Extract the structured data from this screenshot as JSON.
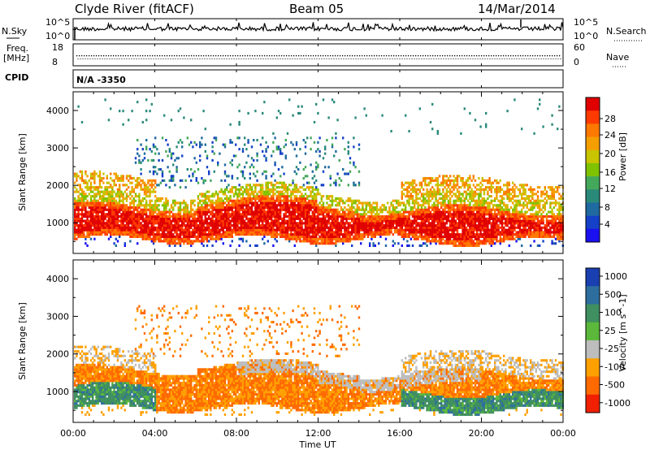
{
  "header": {
    "station": "Clyde River (fitACF)",
    "beam": "Beam 05",
    "date": "14/Mar/2014"
  },
  "top_panels": {
    "nsky_label": "N.Sky",
    "nsky_top_tick": "10^5",
    "nsky_bottom_tick": "10^0",
    "nsearch_label": "N.Search",
    "nsearch_top_tick": "10^5",
    "nsearch_bottom_tick": "10^0",
    "freq_label_1": "Freq.",
    "freq_label_2": "[MHz]",
    "freq_top_tick": "18",
    "freq_bottom_tick": "8",
    "nave_label": "Nave",
    "nave_top_tick": "60",
    "nave_bottom_tick": "0",
    "cpid_label": "CPID",
    "cpid_value": "N/A -3350"
  },
  "chart_data": [
    {
      "type": "heatmap",
      "name": "power",
      "ylabel": "Slant Range [km]",
      "colorbar_label": "Power [dB]",
      "ylim": [
        180,
        4500
      ],
      "yticks": [
        1000,
        2000,
        3000,
        4000
      ],
      "colorbar_ticks": [
        "28",
        "24",
        "20",
        "16",
        "12",
        "8",
        "4"
      ],
      "colorbar_colors": [
        "#e00000",
        "#ff3a00",
        "#ff7800",
        "#f59e00",
        "#c9c400",
        "#7fc200",
        "#44a85a",
        "#2a8a7a",
        "#1f6aa0",
        "#1540c8",
        "#1a10f0"
      ],
      "x_range_hours": [
        0,
        24
      ],
      "bands": [
        {
          "x": [
            0,
            24
          ],
          "y": [
            520,
            1500
          ],
          "level": "strong",
          "note": "main echo band 500-1500 km"
        },
        {
          "x": [
            0,
            4
          ],
          "y": [
            1900,
            2500
          ],
          "level": "medium"
        },
        {
          "x": [
            4,
            14
          ],
          "y": [
            2000,
            3200
          ],
          "level": "weak"
        },
        {
          "x": [
            16,
            24
          ],
          "y": [
            1700,
            2200
          ],
          "level": "medium"
        }
      ]
    },
    {
      "type": "heatmap",
      "name": "velocity",
      "ylabel": "Slant Range [km]",
      "colorbar_label": "Velocity [m s^-1]",
      "ylim": [
        180,
        4500
      ],
      "yticks": [
        1000,
        2000,
        3000,
        4000
      ],
      "colorbar_ticks": [
        "1000",
        "500",
        "100",
        "25",
        "-25",
        "-100",
        "-500",
        "-1000"
      ],
      "colorbar_colors": [
        "#1a3fb0",
        "#2e6e9e",
        "#3f8f60",
        "#5cb83a",
        "#bdbdbd",
        "#ffa000",
        "#ff6a00",
        "#f02000"
      ],
      "x_range_hours": [
        0,
        24
      ],
      "bands": [
        {
          "x": [
            0,
            24
          ],
          "y": [
            520,
            1700
          ],
          "level": "negative"
        },
        {
          "x": [
            0,
            4
          ],
          "y": [
            500,
            1500
          ],
          "level": "positive"
        },
        {
          "x": [
            16,
            24
          ],
          "y": [
            500,
            1200
          ],
          "level": "positive"
        },
        {
          "x": [
            8,
            20
          ],
          "y": [
            1500,
            1900
          ],
          "level": "near-zero"
        }
      ]
    }
  ],
  "x_axis": {
    "ticks": [
      "00:00",
      "04:00",
      "08:00",
      "12:00",
      "16:00",
      "20:00",
      "00:00"
    ],
    "label": "Time UT"
  }
}
